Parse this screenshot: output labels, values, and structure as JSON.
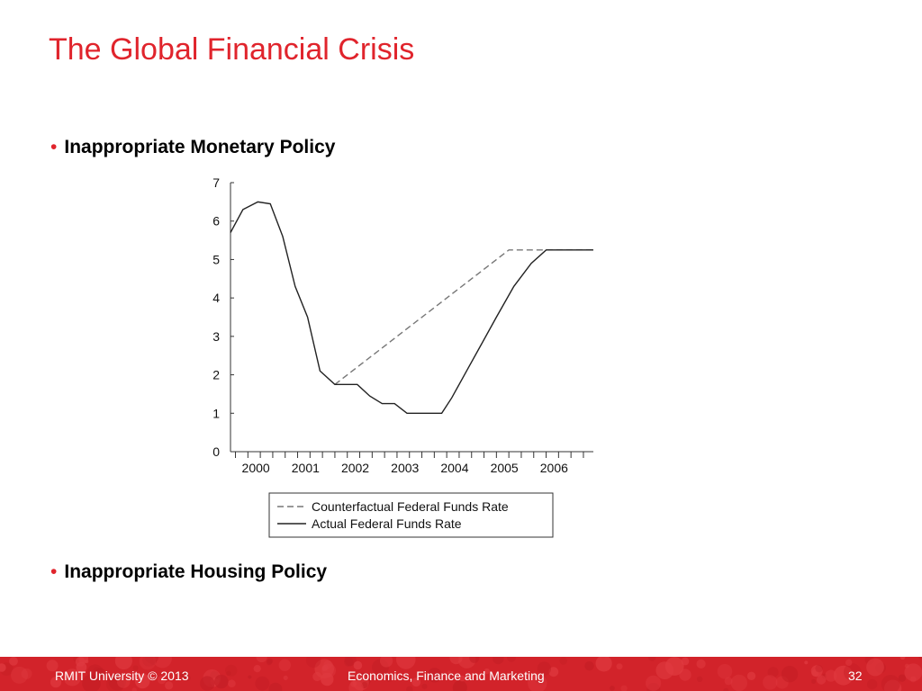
{
  "slide": {
    "title": "The Global Financial Crisis",
    "bullets": [
      "Inappropriate Monetary Policy",
      "Inappropriate Housing Policy"
    ],
    "bullet_marker": "•"
  },
  "footer": {
    "left": "RMIT University © 2013",
    "center": "Economics, Finance and Marketing",
    "page": "32",
    "accent": "#d2232a"
  },
  "title_color": "#e0242c",
  "chart_data": {
    "type": "line",
    "title": "",
    "xlabel": "",
    "ylabel": "",
    "xlim": [
      1999.9,
      2007.2
    ],
    "ylim": [
      0,
      7
    ],
    "yticks": [
      0,
      1,
      2,
      3,
      4,
      5,
      6,
      7
    ],
    "xticks": [
      2000,
      2001,
      2002,
      2003,
      2004,
      2005,
      2006
    ],
    "legend_position": "bottom",
    "series": [
      {
        "name": "Counterfactual Federal Funds Rate",
        "style": "dashed",
        "color": "#777777",
        "x": [
          2002.0,
          2005.5,
          2007.2
        ],
        "y": [
          1.75,
          5.25,
          5.25
        ]
      },
      {
        "name": "Actual Federal Funds Rate",
        "style": "solid",
        "color": "#222222",
        "x": [
          1999.9,
          2000.15,
          2000.45,
          2000.7,
          2000.95,
          2001.2,
          2001.45,
          2001.7,
          2002.0,
          2002.45,
          2002.7,
          2002.95,
          2003.2,
          2003.45,
          2003.7,
          2004.15,
          2004.35,
          2004.65,
          2004.95,
          2005.25,
          2005.6,
          2005.95,
          2006.25,
          2006.5,
          2006.75,
          2007.2
        ],
        "y": [
          5.7,
          6.3,
          6.5,
          6.45,
          5.6,
          4.3,
          3.5,
          2.1,
          1.75,
          1.75,
          1.45,
          1.25,
          1.25,
          1.0,
          1.0,
          1.0,
          1.4,
          2.1,
          2.8,
          3.5,
          4.3,
          4.9,
          5.25,
          5.25,
          5.25,
          5.25
        ]
      }
    ]
  }
}
